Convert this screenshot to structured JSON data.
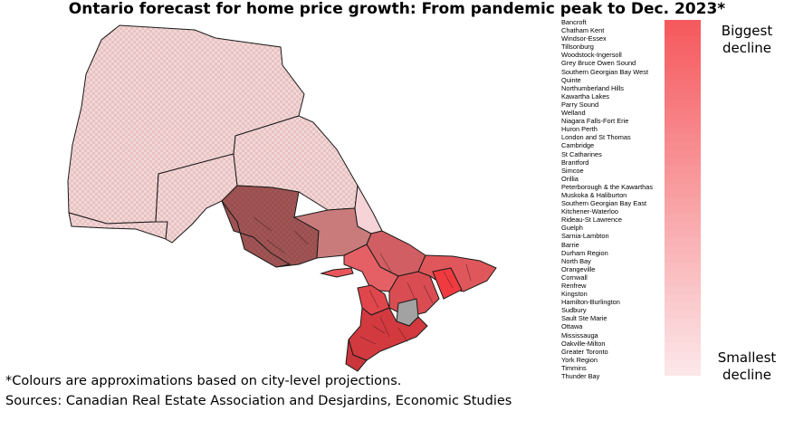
{
  "title": "Ontario forecast for home price growth: From pandemic peak to Dec. 2023*",
  "legend": {
    "top_label": "Biggest decline",
    "bottom_label": "Smallest decline"
  },
  "regions": [
    "Bancroft",
    "Chatham Kent",
    "Windsor-Essex",
    "Tillsonburg",
    "Woodstock-Ingersoll",
    "Grey Bruce Owen Sound",
    "Southern Georgian Bay West",
    "Quinte",
    "Northumberland Hills",
    "Kawartha Lakes",
    "Parry Sound",
    "Welland",
    "Niagara Falls-Fort Erie",
    "Huron Perth",
    "London and St Thomas",
    "Cambridge",
    "St Catharines",
    "Brantford",
    "Simcoe",
    "Orillia",
    "Peterborough & the Kawarthas",
    "Muskoka & Haliburton",
    "Southern Georgian Bay East",
    "Kitchener-Waterloo",
    "Rideau-St Lawrence",
    "Guelph",
    "Sarnia-Lambton",
    "Barrie",
    "Durham Region",
    "North Bay",
    "Orangeville",
    "Cornwall",
    "Renfrew",
    "Kingston",
    "Hamilton-Burlington",
    "Sudbury",
    "Sault Ste Marie",
    "Ottawa",
    "Mississauga",
    "Oakville-Milton",
    "Greater Toronto",
    "York Region",
    "Timmins",
    "Thunder Bay"
  ],
  "colors": {
    "scale_top": "#f55a5e",
    "scale_bottom": "#fce6e8",
    "outline": "#1a1a1a"
  },
  "footnote": "*Colours are approximations based on city-level projections.",
  "sources": "Sources: Canadian Real Estate Association and Desjardins, Economic Studies"
}
